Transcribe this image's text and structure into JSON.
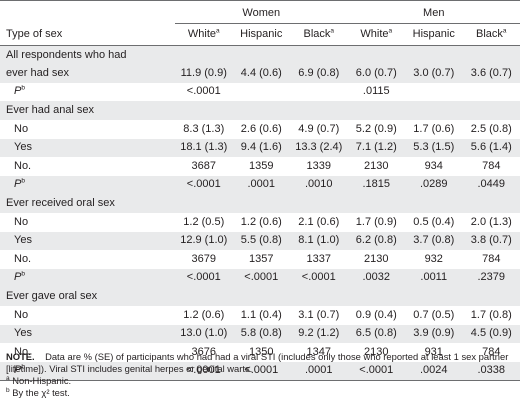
{
  "table": {
    "groups": {
      "women": "Women",
      "men": "Men"
    },
    "columns": {
      "label": "Type of sex",
      "w_white": "White",
      "w_hispanic": "Hispanic",
      "w_black": "Black",
      "m_white": "White",
      "m_hispanic": "Hispanic",
      "m_black": "Black",
      "sup_a": "a"
    },
    "all": {
      "label1": "All respondents who had",
      "label2": "ever had sex",
      "values": [
        "11.9 (0.9)",
        "4.4 (0.6)",
        "6.9 (0.8)",
        "6.0 (0.7)",
        "3.0 (0.7)",
        "3.6 (0.7)"
      ],
      "p_label": "P",
      "p_sup": "b",
      "p_values": [
        "<.0001",
        "",
        "",
        ".0115",
        "",
        ""
      ]
    },
    "sections": [
      {
        "title": "Ever had anal sex",
        "rows": [
          {
            "label": "No",
            "values": [
              "8.3 (1.3)",
              "2.6 (0.6)",
              "4.9 (0.7)",
              "5.2 (0.9)",
              "1.7 (0.6)",
              "2.5 (0.8)"
            ]
          },
          {
            "label": "Yes",
            "values": [
              "18.1 (1.3)",
              "9.4 (1.6)",
              "13.3 (2.4)",
              "7.1 (1.2)",
              "5.3 (1.5)",
              "5.6 (1.4)"
            ]
          },
          {
            "label": "No.",
            "values": [
              "3687",
              "1359",
              "1339",
              "2130",
              "934",
              "784"
            ]
          },
          {
            "label": "P",
            "p": true,
            "values": [
              "<.0001",
              ".0001",
              ".0010",
              ".1815",
              ".0289",
              ".0449"
            ]
          }
        ]
      },
      {
        "title": "Ever received oral sex",
        "rows": [
          {
            "label": "No",
            "values": [
              "1.2 (0.5)",
              "1.2 (0.6)",
              "2.1 (0.6)",
              "1.7 (0.9)",
              "0.5 (0.4)",
              "2.0 (1.3)"
            ]
          },
          {
            "label": "Yes",
            "values": [
              "12.9 (1.0)",
              "5.5 (0.8)",
              "8.1 (1.0)",
              "6.2 (0.8)",
              "3.7 (0.8)",
              "3.8 (0.7)"
            ]
          },
          {
            "label": "No.",
            "values": [
              "3679",
              "1357",
              "1337",
              "2130",
              "932",
              "784"
            ]
          },
          {
            "label": "P",
            "p": true,
            "values": [
              "<.0001",
              "<.0001",
              "<.0001",
              ".0032",
              ".0011",
              ".2379"
            ]
          }
        ]
      },
      {
        "title": "Ever gave oral sex",
        "rows": [
          {
            "label": "No",
            "values": [
              "1.2 (0.6)",
              "1.1 (0.4)",
              "3.1 (0.7)",
              "0.9 (0.4)",
              "0.7 (0.5)",
              "1.7 (0.8)"
            ]
          },
          {
            "label": "Yes",
            "values": [
              "13.0 (1.0)",
              "5.8 (0.8)",
              "9.2 (1.2)",
              "6.5 (0.8)",
              "3.9 (0.9)",
              "4.5 (0.9)"
            ]
          },
          {
            "label": "No.",
            "values": [
              "3676",
              "1350",
              "1347",
              "2130",
              "931",
              "784"
            ]
          },
          {
            "label": "P",
            "p": true,
            "values": [
              "<.0001",
              "<.0001",
              ".0001",
              "<.0001",
              ".0024",
              ".0338"
            ]
          }
        ]
      }
    ]
  },
  "notes": {
    "note_label": "NOTE.",
    "note_text": "Data are % (SE) of participants who had had a viral STI (includes only those who reported at least 1 sex partner [lifetime]). Viral STI includes genital herpes or genital warts.",
    "fn_a_mark": "a",
    "fn_a_text": "Non-Hispanic.",
    "fn_b_mark": "b",
    "fn_b_text": "By the χ² test."
  }
}
